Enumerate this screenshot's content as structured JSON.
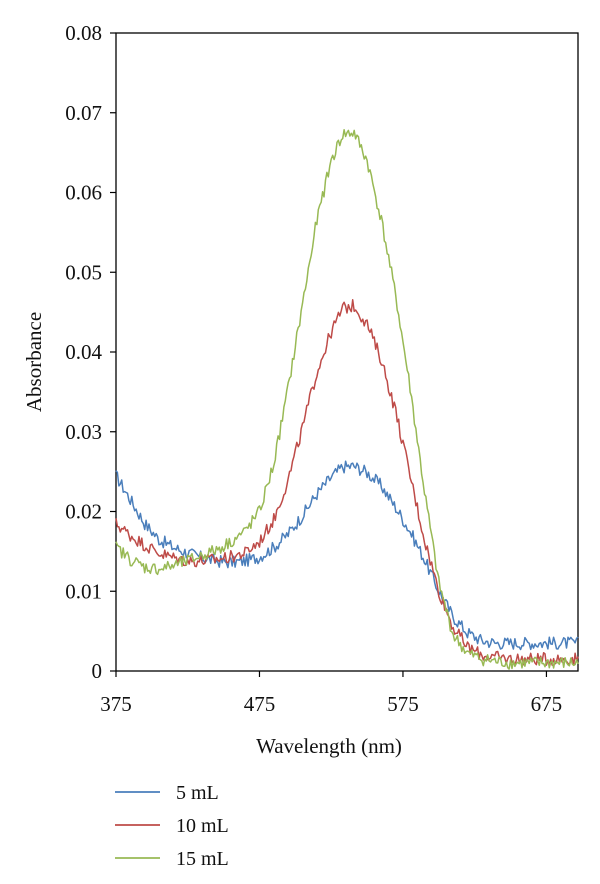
{
  "chart_data": {
    "type": "line",
    "title": "",
    "xlabel": "Wavelength (nm)",
    "ylabel": "Absorbance",
    "xlim": [
      375,
      697
    ],
    "ylim": [
      0,
      0.08
    ],
    "xticks": [
      375,
      475,
      575,
      675
    ],
    "xtick_labels": [
      "375",
      "475",
      "575",
      "675"
    ],
    "yticks": [
      0,
      0.01,
      0.02,
      0.03,
      0.04,
      0.05,
      0.06,
      0.07,
      0.08
    ],
    "ytick_labels": [
      "0",
      "0.01",
      "0.02",
      "0.03",
      "0.04",
      "0.05",
      "0.06",
      "0.07",
      "0.08"
    ],
    "grid": false,
    "legend_position": "bottom-left",
    "x": [
      375,
      385,
      395,
      405,
      415,
      425,
      435,
      445,
      455,
      465,
      475,
      485,
      495,
      505,
      515,
      525,
      533,
      541,
      550,
      560,
      570,
      580,
      590,
      600,
      610,
      620,
      630,
      640,
      650,
      660,
      670,
      680,
      690,
      697
    ],
    "series": [
      {
        "name": "5 mL",
        "color": "#4a7ebb",
        "values": [
          0.0245,
          0.0215,
          0.0185,
          0.0165,
          0.0155,
          0.0148,
          0.0142,
          0.0138,
          0.0136,
          0.0138,
          0.0143,
          0.0155,
          0.0172,
          0.0195,
          0.0222,
          0.0243,
          0.0256,
          0.0257,
          0.0249,
          0.0232,
          0.0205,
          0.0175,
          0.014,
          0.01,
          0.0068,
          0.0048,
          0.0038,
          0.0035,
          0.0035,
          0.0035,
          0.0035,
          0.0035,
          0.0035,
          0.0035
        ]
      },
      {
        "name": "10 mL",
        "color": "#be4b48",
        "values": [
          0.0185,
          0.017,
          0.0158,
          0.0148,
          0.0142,
          0.0138,
          0.0138,
          0.014,
          0.0143,
          0.0148,
          0.0162,
          0.019,
          0.024,
          0.0305,
          0.0375,
          0.0425,
          0.0455,
          0.0458,
          0.0435,
          0.039,
          0.0325,
          0.0245,
          0.0165,
          0.01,
          0.0055,
          0.003,
          0.002,
          0.0017,
          0.0015,
          0.0015,
          0.0015,
          0.0015,
          0.0015,
          0.0015
        ]
      },
      {
        "name": "15 mL",
        "color": "#98b954",
        "values": [
          0.0155,
          0.014,
          0.013,
          0.0128,
          0.0132,
          0.0138,
          0.0145,
          0.0152,
          0.0162,
          0.0175,
          0.02,
          0.026,
          0.0355,
          0.046,
          0.0565,
          0.064,
          0.0673,
          0.0675,
          0.064,
          0.0565,
          0.047,
          0.0355,
          0.0225,
          0.011,
          0.0045,
          0.0022,
          0.0015,
          0.0012,
          0.001,
          0.001,
          0.001,
          0.001,
          0.001,
          0.001
        ]
      }
    ]
  }
}
